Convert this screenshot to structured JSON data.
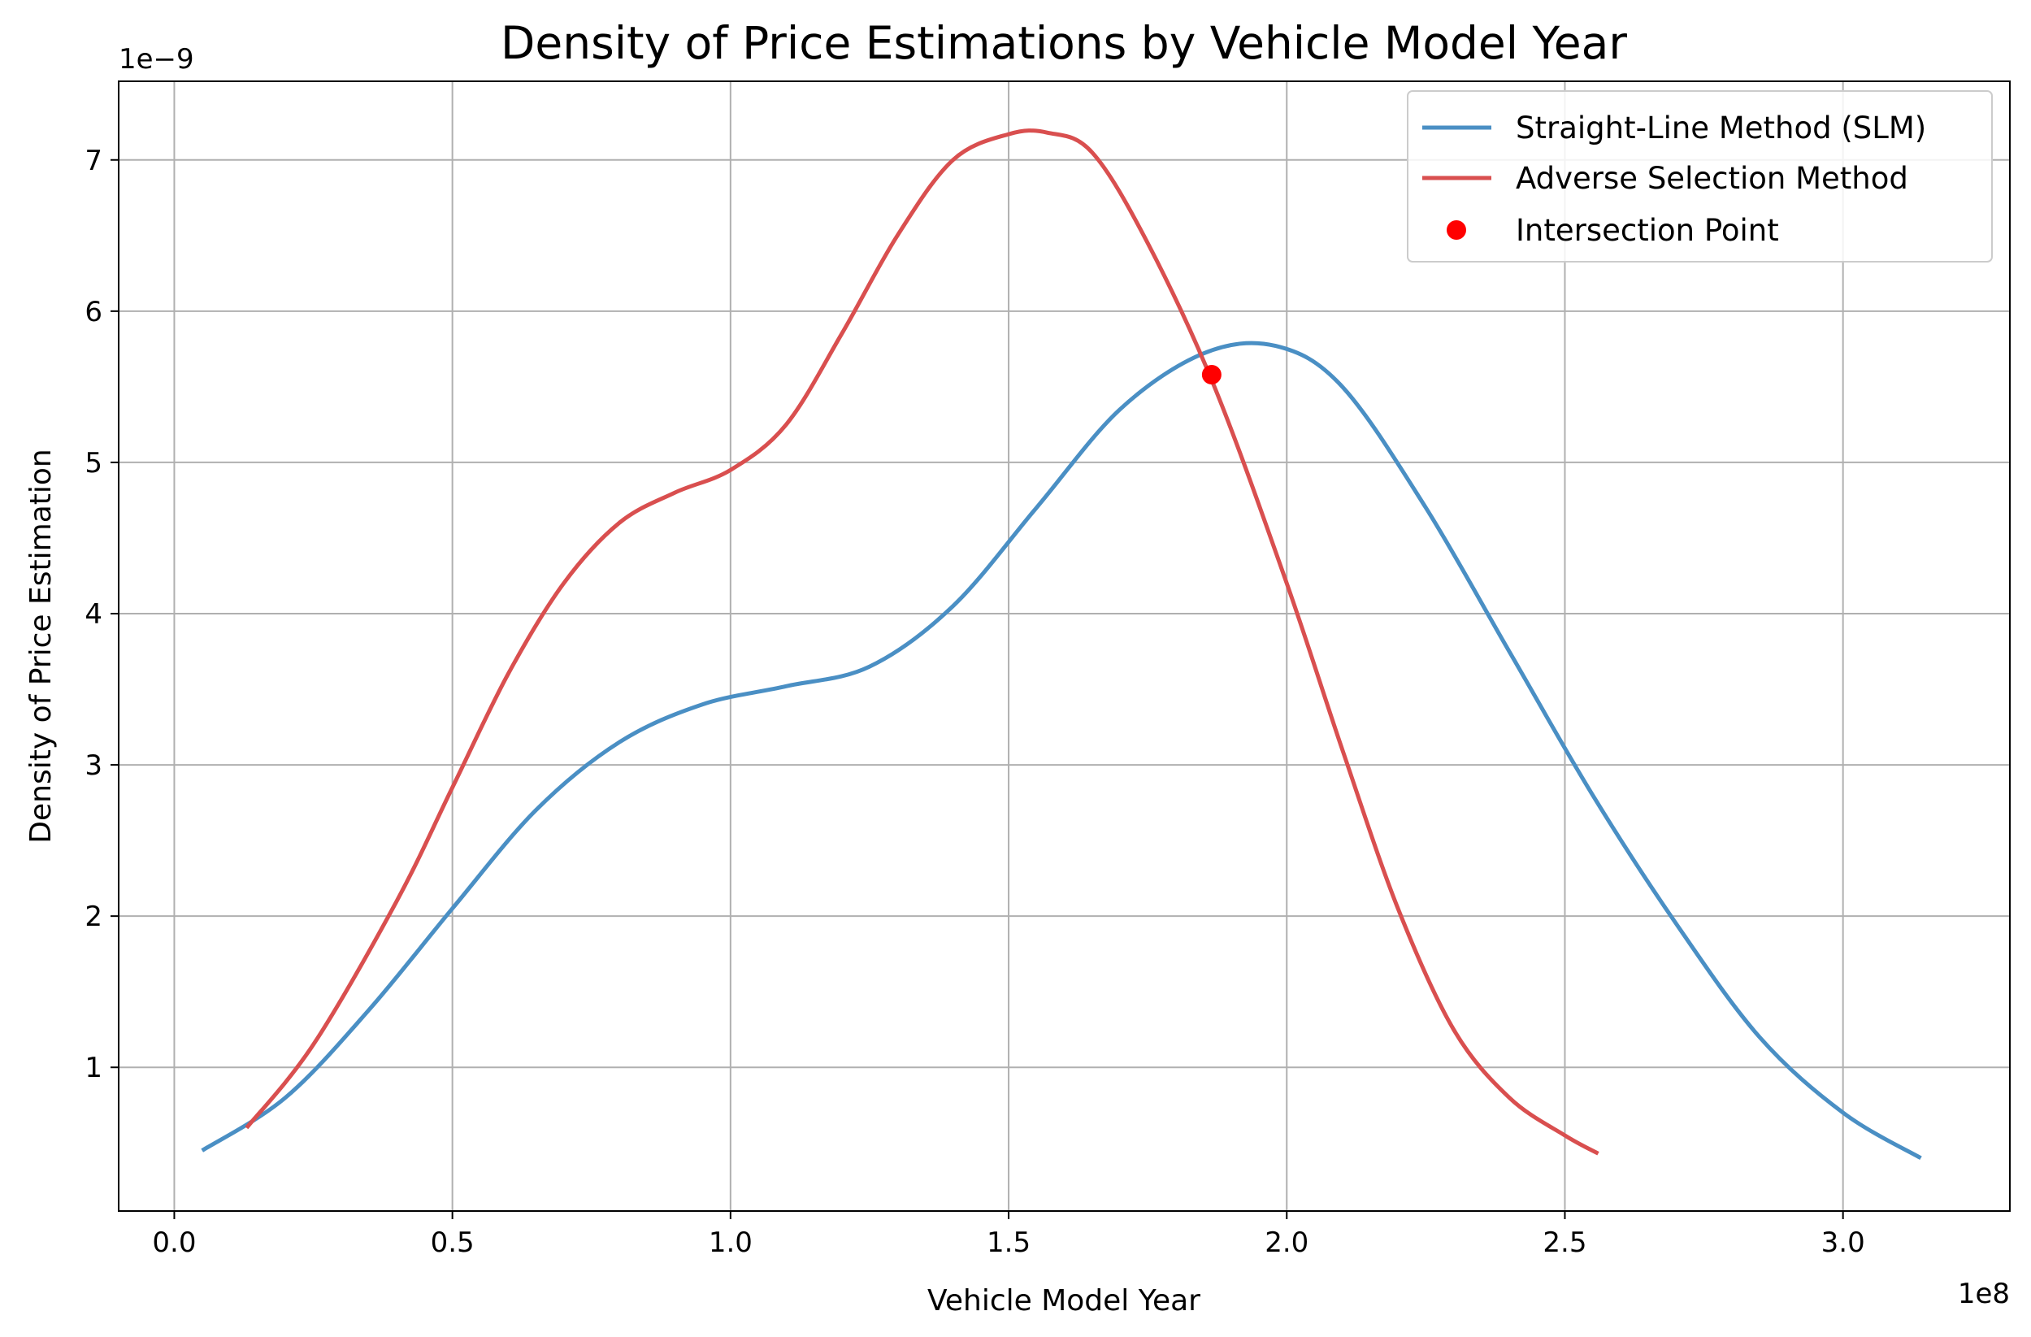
{
  "chart_data": {
    "type": "line",
    "title": "Density of Price Estimations by Vehicle Model Year",
    "xlabel": "Vehicle Model Year",
    "ylabel": "Density of Price Estimation",
    "x_offset_label": "1e8",
    "y_offset_label": "1e−9",
    "x_scale": 100000000,
    "y_scale": 1e-09,
    "xlim": [
      -0.1,
      3.3
    ],
    "ylim": [
      0.05,
      7.52
    ],
    "x_ticks": [
      0.0,
      0.5,
      1.0,
      1.5,
      2.0,
      2.5,
      3.0
    ],
    "x_tick_labels": [
      "0.0",
      "0.5",
      "1.0",
      "1.5",
      "2.0",
      "2.5",
      "3.0"
    ],
    "y_ticks": [
      1,
      2,
      3,
      4,
      5,
      6,
      7
    ],
    "y_tick_labels": [
      "1",
      "2",
      "3",
      "4",
      "5",
      "6",
      "7"
    ],
    "grid": true,
    "legend_position": "top-right",
    "series": [
      {
        "name": "Straight-Line Method (SLM)",
        "kind": "line",
        "color": "#4a8fc4",
        "x": [
          0.05,
          0.2,
          0.35,
          0.5,
          0.65,
          0.8,
          0.95,
          1.1,
          1.25,
          1.4,
          1.55,
          1.7,
          1.85,
          1.98,
          2.1,
          2.25,
          2.4,
          2.55,
          2.7,
          2.85,
          3.0,
          3.14
        ],
        "y": [
          0.45,
          0.8,
          1.38,
          2.05,
          2.7,
          3.15,
          3.4,
          3.52,
          3.65,
          4.05,
          4.7,
          5.35,
          5.72,
          5.77,
          5.5,
          4.7,
          3.75,
          2.8,
          1.95,
          1.2,
          0.7,
          0.4
        ]
      },
      {
        "name": "Adverse Selection Method",
        "kind": "line",
        "color": "#d94f4f",
        "x": [
          0.13,
          0.25,
          0.4,
          0.5,
          0.6,
          0.7,
          0.8,
          0.9,
          1.0,
          1.1,
          1.2,
          1.3,
          1.4,
          1.5,
          1.57,
          1.65,
          1.75,
          1.87,
          2.0,
          2.1,
          2.2,
          2.3,
          2.4,
          2.5,
          2.56
        ],
        "y": [
          0.6,
          1.15,
          2.1,
          2.85,
          3.6,
          4.2,
          4.6,
          4.8,
          4.95,
          5.25,
          5.85,
          6.5,
          7.0,
          7.17,
          7.18,
          7.05,
          6.45,
          5.5,
          4.2,
          3.1,
          2.05,
          1.25,
          0.8,
          0.55,
          0.43
        ]
      }
    ],
    "markers": [
      {
        "name": "Intersection Point",
        "color": "#ff0000",
        "x": 1.865,
        "y": 5.58
      }
    ]
  }
}
